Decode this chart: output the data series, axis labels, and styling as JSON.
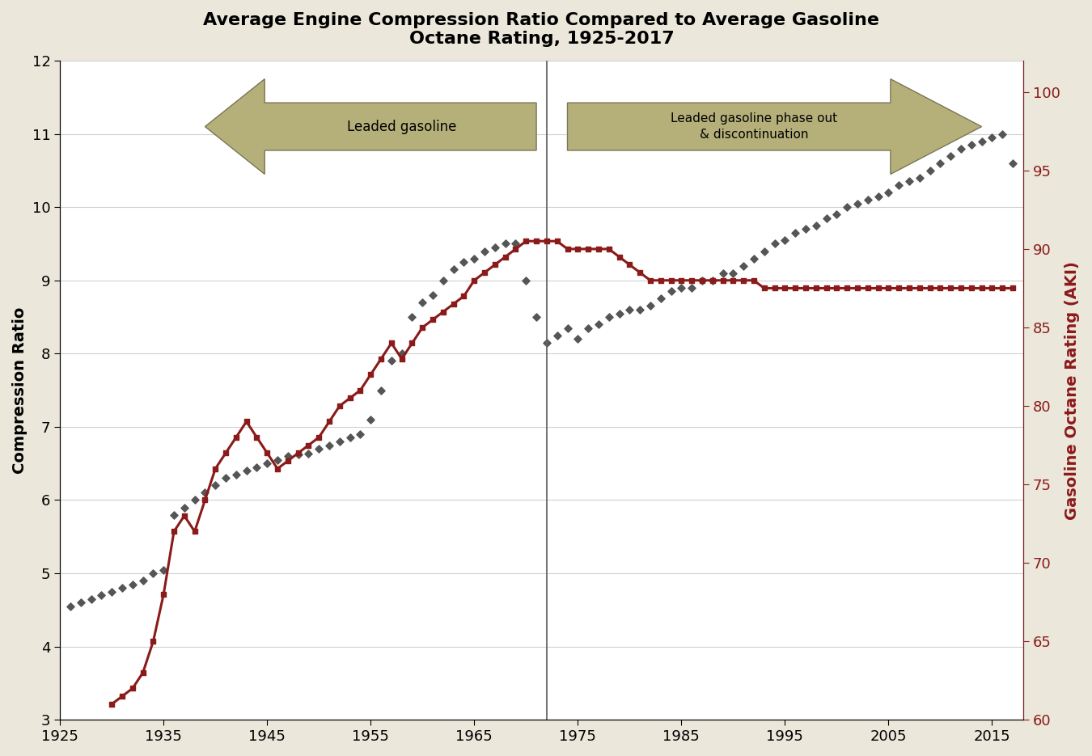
{
  "title": "Average Engine Compression Ratio Compared to Average Gasoline\nOctane Rating, 1925-2017",
  "title_fontsize": 16,
  "ylabel_left": "Compression Ratio",
  "ylabel_right": "Gasoline Octane Rating (AKI)",
  "xlim": [
    1925,
    2018
  ],
  "ylim_left": [
    3,
    12
  ],
  "ylim_right": [
    60,
    102
  ],
  "xticks": [
    1925,
    1935,
    1945,
    1955,
    1965,
    1975,
    1985,
    1995,
    2005,
    2015
  ],
  "yticks_left": [
    3,
    4,
    5,
    6,
    7,
    8,
    9,
    10,
    11,
    12
  ],
  "yticks_right": [
    60,
    65,
    70,
    75,
    80,
    85,
    90,
    95,
    100
  ],
  "background_color": "#ebe7da",
  "plot_bg_color": "#ffffff",
  "vline_x": 1972,
  "compression_data": {
    "years": [
      1926,
      1927,
      1928,
      1929,
      1930,
      1931,
      1932,
      1933,
      1934,
      1935,
      1936,
      1937,
      1938,
      1939,
      1940,
      1941,
      1942,
      1943,
      1944,
      1945,
      1946,
      1947,
      1948,
      1949,
      1950,
      1951,
      1952,
      1953,
      1954,
      1955,
      1956,
      1957,
      1958,
      1959,
      1960,
      1961,
      1962,
      1963,
      1964,
      1965,
      1966,
      1967,
      1968,
      1969,
      1970,
      1971,
      1972,
      1973,
      1974,
      1975,
      1976,
      1977,
      1978,
      1979,
      1980,
      1981,
      1982,
      1983,
      1984,
      1985,
      1986,
      1987,
      1988,
      1989,
      1990,
      1991,
      1992,
      1993,
      1994,
      1995,
      1996,
      1997,
      1998,
      1999,
      2000,
      2001,
      2002,
      2003,
      2004,
      2005,
      2006,
      2007,
      2008,
      2009,
      2010,
      2011,
      2012,
      2013,
      2014,
      2015,
      2016,
      2017
    ],
    "values": [
      4.55,
      4.6,
      4.65,
      4.7,
      4.75,
      4.8,
      4.85,
      4.9,
      5.0,
      5.05,
      5.8,
      5.9,
      6.0,
      6.1,
      6.2,
      6.3,
      6.35,
      6.4,
      6.45,
      6.5,
      6.55,
      6.6,
      6.62,
      6.64,
      6.7,
      6.75,
      6.8,
      6.85,
      6.9,
      7.1,
      7.5,
      7.9,
      8.0,
      8.5,
      8.7,
      8.8,
      9.0,
      9.15,
      9.25,
      9.3,
      9.4,
      9.45,
      9.5,
      9.5,
      9.0,
      8.5,
      8.15,
      8.25,
      8.35,
      8.2,
      8.35,
      8.4,
      8.5,
      8.55,
      8.6,
      8.6,
      8.65,
      8.75,
      8.85,
      8.9,
      8.9,
      9.0,
      9.0,
      9.1,
      9.1,
      9.2,
      9.3,
      9.4,
      9.5,
      9.55,
      9.65,
      9.7,
      9.75,
      9.85,
      9.9,
      10.0,
      10.05,
      10.1,
      10.15,
      10.2,
      10.3,
      10.35,
      10.4,
      10.5,
      10.6,
      10.7,
      10.8,
      10.85,
      10.9,
      10.95,
      11.0,
      10.6
    ]
  },
  "octane_data": {
    "years": [
      1930,
      1931,
      1932,
      1933,
      1934,
      1935,
      1936,
      1937,
      1938,
      1939,
      1940,
      1941,
      1942,
      1943,
      1944,
      1945,
      1946,
      1947,
      1948,
      1949,
      1950,
      1951,
      1952,
      1953,
      1954,
      1955,
      1956,
      1957,
      1958,
      1959,
      1960,
      1961,
      1962,
      1963,
      1964,
      1965,
      1966,
      1967,
      1968,
      1969,
      1970,
      1971,
      1972,
      1973,
      1974,
      1975,
      1976,
      1977,
      1978,
      1979,
      1980,
      1981,
      1982,
      1983,
      1984,
      1985,
      1986,
      1987,
      1988,
      1989,
      1990,
      1991,
      1992,
      1993,
      1994,
      1995,
      1996,
      1997,
      1998,
      1999,
      2000,
      2001,
      2002,
      2003,
      2004,
      2005,
      2006,
      2007,
      2008,
      2009,
      2010,
      2011,
      2012,
      2013,
      2014,
      2015,
      2016,
      2017
    ],
    "values": [
      61,
      61.5,
      62,
      63,
      65,
      68,
      72,
      73,
      72,
      74,
      76,
      77,
      78,
      79,
      78,
      77,
      76,
      76.5,
      77,
      77.5,
      78,
      79,
      80,
      80.5,
      81,
      82,
      83,
      84,
      83,
      84,
      85,
      85.5,
      86,
      86.5,
      87,
      88,
      88.5,
      89,
      89.5,
      90,
      90.5,
      90.5,
      90.5,
      90.5,
      90,
      90,
      90,
      90,
      90,
      89.5,
      89,
      88.5,
      88,
      88,
      88,
      88,
      88,
      88,
      88,
      88,
      88,
      88,
      88,
      87.5,
      87.5,
      87.5,
      87.5,
      87.5,
      87.5,
      87.5,
      87.5,
      87.5,
      87.5,
      87.5,
      87.5,
      87.5,
      87.5,
      87.5,
      87.5,
      87.5,
      87.5,
      87.5,
      87.5,
      87.5,
      87.5,
      87.5,
      87.5,
      87.5
    ]
  },
  "arrow_facecolor": "#b5b07a",
  "arrow_edgecolor": "#7a7555",
  "compression_color": "#555555",
  "octane_color": "#8b1a1a",
  "vline_color": "#666666"
}
